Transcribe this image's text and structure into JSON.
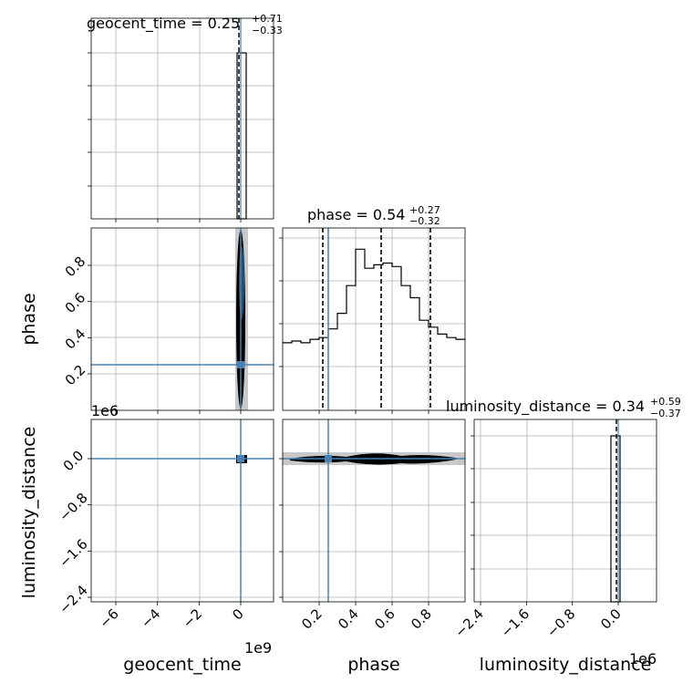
{
  "chart_data": [
    {
      "panel": "geocent_time marginal",
      "type": "histogram",
      "title": "geocent_time = 0.25",
      "title_sup": "+0.71",
      "title_sub": "−0.33",
      "x_ticklabels": [],
      "y_ticklabels": [],
      "median": 0.25,
      "bars": [
        {
          "x0": -0.05,
          "x1": 0.35,
          "height": 1.0
        }
      ]
    },
    {
      "panel": "phase vs geocent_time",
      "type": "scatter",
      "ylabel": "phase",
      "y_ticks": [
        0.2,
        0.4,
        0.6,
        0.8
      ],
      "y_ticklabels": [
        "0.2",
        "0.4",
        "0.6",
        "0.8"
      ],
      "truth": {
        "x": 0,
        "y": 0.25
      }
    },
    {
      "panel": "phase marginal",
      "type": "histogram",
      "title": "phase = 0.54",
      "title_sup": "+0.27",
      "title_sub": "−0.32",
      "quantiles": [
        0.22,
        0.54,
        0.81
      ],
      "truth": 0.25,
      "steps": [
        [
          0.0,
          0.39
        ],
        [
          0.05,
          0.4
        ],
        [
          0.1,
          0.39
        ],
        [
          0.15,
          0.41
        ],
        [
          0.2,
          0.42
        ],
        [
          0.25,
          0.47
        ],
        [
          0.3,
          0.56
        ],
        [
          0.35,
          0.72
        ],
        [
          0.4,
          0.93
        ],
        [
          0.45,
          0.82
        ],
        [
          0.5,
          0.84
        ],
        [
          0.55,
          0.85
        ],
        [
          0.6,
          0.83
        ],
        [
          0.65,
          0.72
        ],
        [
          0.7,
          0.65
        ],
        [
          0.75,
          0.52
        ],
        [
          0.8,
          0.48
        ],
        [
          0.85,
          0.44
        ],
        [
          0.9,
          0.42
        ],
        [
          0.95,
          0.41
        ]
      ]
    },
    {
      "panel": "luminosity_distance vs geocent_time",
      "type": "scatter",
      "xlabel": "geocent_time",
      "ylabel": "luminosity_distance",
      "x_ticks": [
        -6,
        -4,
        -2,
        0
      ],
      "x_ticklabels": [
        "−6",
        "−4",
        "−2",
        "0"
      ],
      "x_offset": "1e9",
      "y_ticks": [
        0.0,
        -0.8,
        -1.6,
        -2.4
      ],
      "y_ticklabels": [
        "0.0",
        "−0.8",
        "−1.6",
        "−2.4"
      ],
      "y_offset": "1e6",
      "truth": {
        "x": 0,
        "y": 0.0
      }
    },
    {
      "panel": "luminosity_distance vs phase",
      "type": "scatter",
      "xlabel": "phase",
      "x_ticks": [
        0.2,
        0.4,
        0.6,
        0.8
      ],
      "x_ticklabels": [
        "0.2",
        "0.4",
        "0.6",
        "0.8"
      ],
      "truth": {
        "x": 0.25,
        "y": 0.0
      }
    },
    {
      "panel": "luminosity_distance marginal",
      "type": "histogram",
      "title": "luminosity_distance = 0.34",
      "title_sup": "+0.59",
      "title_sub": "−0.37",
      "xlabel": "luminosity_distance",
      "x_ticks": [
        -2.4,
        -1.6,
        -0.8,
        0.0
      ],
      "x_ticklabels": [
        "−2.4",
        "−1.6",
        "−0.8",
        "0.0"
      ],
      "x_offset": "1e6",
      "median": 0.34
    }
  ],
  "colors": {
    "truth": "#4682b4",
    "hist": "#000000",
    "grid": "#b0b0b0",
    "cloud": "#c8c8c8"
  }
}
